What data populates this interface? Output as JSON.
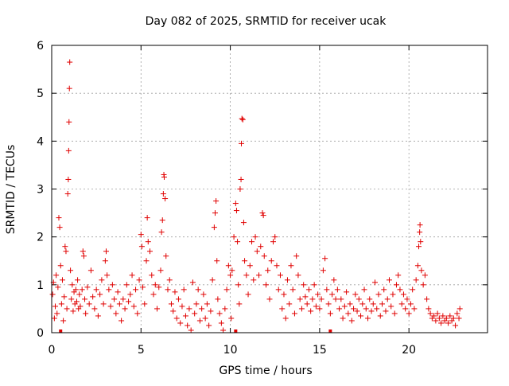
{
  "chart_data": {
    "type": "scatter",
    "title": "Day 082 of 2025, SRMTID for receiver ucak",
    "xlabel": "GPS time / hours",
    "ylabel": "SRMTID / TECUs",
    "xlim": [
      0,
      24.4
    ],
    "ylim": [
      0,
      6
    ],
    "xticks": [
      0,
      5,
      10,
      15,
      20
    ],
    "yticks": [
      0,
      1,
      2,
      3,
      4,
      5,
      6
    ],
    "grid": true,
    "marker": "plus",
    "color": "#e00000",
    "series": [
      {
        "name": "SRMTID",
        "points": [
          [
            0.05,
            0.8
          ],
          [
            0.1,
            1.05
          ],
          [
            0.15,
            0.3
          ],
          [
            0.2,
            0.55
          ],
          [
            0.25,
            1.2
          ],
          [
            0.3,
            0.4
          ],
          [
            0.35,
            0.95
          ],
          [
            0.4,
            2.4
          ],
          [
            0.45,
            2.2
          ],
          [
            0.5,
            1.4
          ],
          [
            0.55,
            0.6
          ],
          [
            0.6,
            1.1
          ],
          [
            0.65,
            0.25
          ],
          [
            0.7,
            0.75
          ],
          [
            0.75,
            1.8
          ],
          [
            0.8,
            1.7
          ],
          [
            0.85,
            0.5
          ],
          [
            0.9,
            2.9
          ],
          [
            0.93,
            3.2
          ],
          [
            0.95,
            3.8
          ],
          [
            0.97,
            4.4
          ],
          [
            0.99,
            5.1
          ],
          [
            1.01,
            5.65
          ],
          [
            1.05,
            1.3
          ],
          [
            1.1,
            0.7
          ],
          [
            1.15,
            1.0
          ],
          [
            1.2,
            0.45
          ],
          [
            1.25,
            0.85
          ],
          [
            1.3,
            0.6
          ],
          [
            1.35,
            0.9
          ],
          [
            1.4,
            0.65
          ],
          [
            1.45,
            1.1
          ],
          [
            1.5,
            0.5
          ],
          [
            1.55,
            0.8
          ],
          [
            1.6,
            0.55
          ],
          [
            1.7,
            0.9
          ],
          [
            1.75,
            1.7
          ],
          [
            1.8,
            1.6
          ],
          [
            1.85,
            0.7
          ],
          [
            1.9,
            0.4
          ],
          [
            2.0,
            0.95
          ],
          [
            2.1,
            0.6
          ],
          [
            2.2,
            1.3
          ],
          [
            2.3,
            0.75
          ],
          [
            2.4,
            0.5
          ],
          [
            2.5,
            0.9
          ],
          [
            2.6,
            0.35
          ],
          [
            2.7,
            0.8
          ],
          [
            2.8,
            1.1
          ],
          [
            2.9,
            0.6
          ],
          [
            3.0,
            1.5
          ],
          [
            3.05,
            1.7
          ],
          [
            3.1,
            1.2
          ],
          [
            3.2,
            0.9
          ],
          [
            3.3,
            0.55
          ],
          [
            3.4,
            1.0
          ],
          [
            3.5,
            0.7
          ],
          [
            3.6,
            0.4
          ],
          [
            3.7,
            0.85
          ],
          [
            3.8,
            0.6
          ],
          [
            3.9,
            0.25
          ],
          [
            4.0,
            0.7
          ],
          [
            4.1,
            0.5
          ],
          [
            4.2,
            1.0
          ],
          [
            4.3,
            0.65
          ],
          [
            4.4,
            0.8
          ],
          [
            4.5,
            1.2
          ],
          [
            4.6,
            0.55
          ],
          [
            4.7,
            0.9
          ],
          [
            4.8,
            0.4
          ],
          [
            4.9,
            1.1
          ],
          [
            5.0,
            2.05
          ],
          [
            5.05,
            1.8
          ],
          [
            5.1,
            0.95
          ],
          [
            5.2,
            0.6
          ],
          [
            5.3,
            1.5
          ],
          [
            5.35,
            2.4
          ],
          [
            5.4,
            1.9
          ],
          [
            5.5,
            1.7
          ],
          [
            5.6,
            1.2
          ],
          [
            5.7,
            0.8
          ],
          [
            5.8,
            1.0
          ],
          [
            5.9,
            0.5
          ],
          [
            6.0,
            0.95
          ],
          [
            6.1,
            1.3
          ],
          [
            6.15,
            2.1
          ],
          [
            6.2,
            2.35
          ],
          [
            6.25,
            2.9
          ],
          [
            6.28,
            3.3
          ],
          [
            6.3,
            3.25
          ],
          [
            6.35,
            2.8
          ],
          [
            6.4,
            1.6
          ],
          [
            6.5,
            0.9
          ],
          [
            6.6,
            1.1
          ],
          [
            6.7,
            0.6
          ],
          [
            6.8,
            0.45
          ],
          [
            6.9,
            0.85
          ],
          [
            7.0,
            0.3
          ],
          [
            7.1,
            0.7
          ],
          [
            7.2,
            0.2
          ],
          [
            7.3,
            0.55
          ],
          [
            7.4,
            0.9
          ],
          [
            7.5,
            0.35
          ],
          [
            7.6,
            0.15
          ],
          [
            7.7,
            0.5
          ],
          [
            7.8,
            0.05
          ],
          [
            7.9,
            1.05
          ],
          [
            8.0,
            0.4
          ],
          [
            8.1,
            0.6
          ],
          [
            8.2,
            0.9
          ],
          [
            8.3,
            0.25
          ],
          [
            8.4,
            0.5
          ],
          [
            8.5,
            0.8
          ],
          [
            8.6,
            0.3
          ],
          [
            8.7,
            0.6
          ],
          [
            8.8,
            0.15
          ],
          [
            8.9,
            0.45
          ],
          [
            9.0,
            1.1
          ],
          [
            9.1,
            2.2
          ],
          [
            9.15,
            2.5
          ],
          [
            9.2,
            2.75
          ],
          [
            9.25,
            1.5
          ],
          [
            9.3,
            0.7
          ],
          [
            9.4,
            0.4
          ],
          [
            9.5,
            0.2
          ],
          [
            9.6,
            0.05
          ],
          [
            9.7,
            0.5
          ],
          [
            9.8,
            0.9
          ],
          [
            9.9,
            1.4
          ],
          [
            10.0,
            1.2
          ],
          [
            10.05,
            0.3
          ],
          [
            10.1,
            1.3
          ],
          [
            10.2,
            2.0
          ],
          [
            10.3,
            2.7
          ],
          [
            10.35,
            2.55
          ],
          [
            10.4,
            1.9
          ],
          [
            10.45,
            1.0
          ],
          [
            10.5,
            0.6
          ],
          [
            10.55,
            3.0
          ],
          [
            10.6,
            3.2
          ],
          [
            10.62,
            3.95
          ],
          [
            10.65,
            4.47
          ],
          [
            10.7,
            4.45
          ],
          [
            10.75,
            2.3
          ],
          [
            10.8,
            1.5
          ],
          [
            10.9,
            1.2
          ],
          [
            11.0,
            0.8
          ],
          [
            11.1,
            1.4
          ],
          [
            11.2,
            1.9
          ],
          [
            11.3,
            1.1
          ],
          [
            11.4,
            2.0
          ],
          [
            11.5,
            1.7
          ],
          [
            11.6,
            1.2
          ],
          [
            11.7,
            1.8
          ],
          [
            11.8,
            2.5
          ],
          [
            11.85,
            2.45
          ],
          [
            11.9,
            1.6
          ],
          [
            12.0,
            1.0
          ],
          [
            12.1,
            1.3
          ],
          [
            12.2,
            0.7
          ],
          [
            12.3,
            1.5
          ],
          [
            12.4,
            1.9
          ],
          [
            12.5,
            2.0
          ],
          [
            12.6,
            1.4
          ],
          [
            12.7,
            0.9
          ],
          [
            12.8,
            1.2
          ],
          [
            12.9,
            0.5
          ],
          [
            13.0,
            0.8
          ],
          [
            13.1,
            0.3
          ],
          [
            13.2,
            1.1
          ],
          [
            13.3,
            0.6
          ],
          [
            13.4,
            1.4
          ],
          [
            13.5,
            0.9
          ],
          [
            13.6,
            0.4
          ],
          [
            13.7,
            1.6
          ],
          [
            13.8,
            1.2
          ],
          [
            13.9,
            0.7
          ],
          [
            14.0,
            0.5
          ],
          [
            14.1,
            1.0
          ],
          [
            14.2,
            0.75
          ],
          [
            14.3,
            0.6
          ],
          [
            14.4,
            0.9
          ],
          [
            14.5,
            0.45
          ],
          [
            14.6,
            0.7
          ],
          [
            14.7,
            1.0
          ],
          [
            14.8,
            0.55
          ],
          [
            14.9,
            0.8
          ],
          [
            15.0,
            0.5
          ],
          [
            15.1,
            0.7
          ],
          [
            15.2,
            1.3
          ],
          [
            15.3,
            1.55
          ],
          [
            15.4,
            0.9
          ],
          [
            15.5,
            0.6
          ],
          [
            15.6,
            0.4
          ],
          [
            15.7,
            0.8
          ],
          [
            15.8,
            1.1
          ],
          [
            15.9,
            0.7
          ],
          [
            16.0,
            0.9
          ],
          [
            16.1,
            0.5
          ],
          [
            16.2,
            0.7
          ],
          [
            16.3,
            0.3
          ],
          [
            16.4,
            0.55
          ],
          [
            16.5,
            0.85
          ],
          [
            16.6,
            0.4
          ],
          [
            16.7,
            0.6
          ],
          [
            16.8,
            0.25
          ],
          [
            16.9,
            0.5
          ],
          [
            17.0,
            0.8
          ],
          [
            17.1,
            0.45
          ],
          [
            17.2,
            0.7
          ],
          [
            17.3,
            0.35
          ],
          [
            17.4,
            0.6
          ],
          [
            17.5,
            0.9
          ],
          [
            17.6,
            0.5
          ],
          [
            17.7,
            0.3
          ],
          [
            17.8,
            0.7
          ],
          [
            17.9,
            0.45
          ],
          [
            18.0,
            0.6
          ],
          [
            18.1,
            1.05
          ],
          [
            18.2,
            0.5
          ],
          [
            18.3,
            0.8
          ],
          [
            18.4,
            0.35
          ],
          [
            18.5,
            0.6
          ],
          [
            18.6,
            0.9
          ],
          [
            18.7,
            0.45
          ],
          [
            18.8,
            0.7
          ],
          [
            18.9,
            1.1
          ],
          [
            19.0,
            0.55
          ],
          [
            19.1,
            0.8
          ],
          [
            19.2,
            0.4
          ],
          [
            19.3,
            1.0
          ],
          [
            19.4,
            1.2
          ],
          [
            19.5,
            0.9
          ],
          [
            19.6,
            0.6
          ],
          [
            19.7,
            0.8
          ],
          [
            19.8,
            0.5
          ],
          [
            19.9,
            0.7
          ],
          [
            20.0,
            0.4
          ],
          [
            20.1,
            0.6
          ],
          [
            20.2,
            0.9
          ],
          [
            20.3,
            0.5
          ],
          [
            20.4,
            1.1
          ],
          [
            20.5,
            1.4
          ],
          [
            20.55,
            1.8
          ],
          [
            20.6,
            2.1
          ],
          [
            20.62,
            2.25
          ],
          [
            20.65,
            1.9
          ],
          [
            20.7,
            1.3
          ],
          [
            20.8,
            1.0
          ],
          [
            20.9,
            1.2
          ],
          [
            21.0,
            0.7
          ],
          [
            21.1,
            0.5
          ],
          [
            21.2,
            0.4
          ],
          [
            21.3,
            0.3
          ],
          [
            21.4,
            0.35
          ],
          [
            21.5,
            0.25
          ],
          [
            21.6,
            0.4
          ],
          [
            21.7,
            0.3
          ],
          [
            21.8,
            0.2
          ],
          [
            21.9,
            0.35
          ],
          [
            22.0,
            0.25
          ],
          [
            22.1,
            0.3
          ],
          [
            22.2,
            0.2
          ],
          [
            22.3,
            0.35
          ],
          [
            22.4,
            0.25
          ],
          [
            22.5,
            0.3
          ],
          [
            22.6,
            0.15
          ],
          [
            22.7,
            0.4
          ],
          [
            22.8,
            0.3
          ],
          [
            22.85,
            0.5
          ],
          [
            0.5,
            0.0
          ],
          [
            10.3,
            0.0
          ],
          [
            15.6,
            0.0
          ]
        ]
      }
    ]
  }
}
